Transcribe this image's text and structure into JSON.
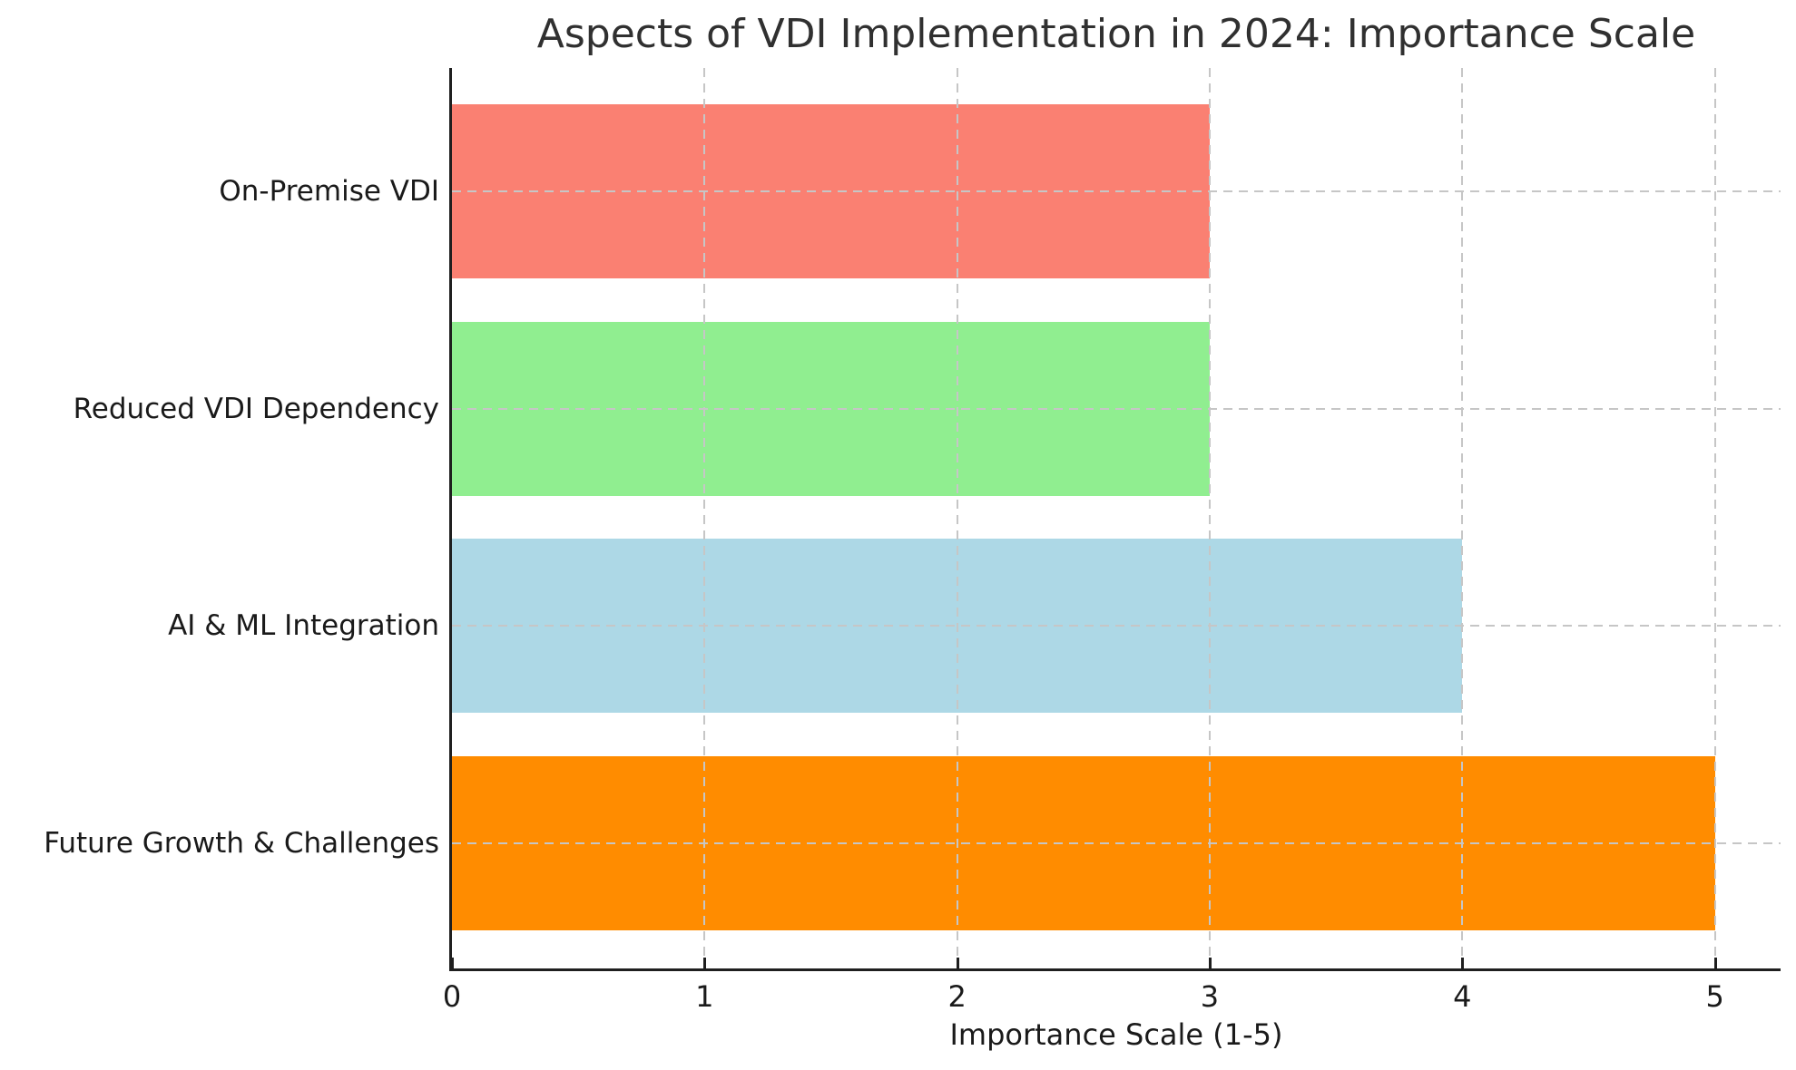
{
  "chart_data": {
    "type": "bar",
    "orientation": "horizontal",
    "title": "Aspects of VDI Implementation in 2024: Importance Scale",
    "xlabel": "Importance Scale (1-5)",
    "ylabel": "",
    "categories": [
      "On-Premise VDI",
      "Reduced VDI Dependency",
      "AI & ML Integration",
      "Future Growth & Challenges"
    ],
    "values": [
      3,
      3,
      4,
      5
    ],
    "bar_colors": [
      "#FA8072",
      "#90EE90",
      "#ADD8E6",
      "#FF8C00"
    ],
    "xticks": [
      0,
      1,
      2,
      3,
      4,
      5
    ],
    "xlim": [
      0,
      5.26
    ],
    "grid": "dashed gridlines on both axes, drawn over bars",
    "legend": "none"
  },
  "style_colors": {
    "background": "#ffffff",
    "text": "#262626",
    "spine": "#1f1f1f",
    "grid": "#c6c6c6"
  }
}
